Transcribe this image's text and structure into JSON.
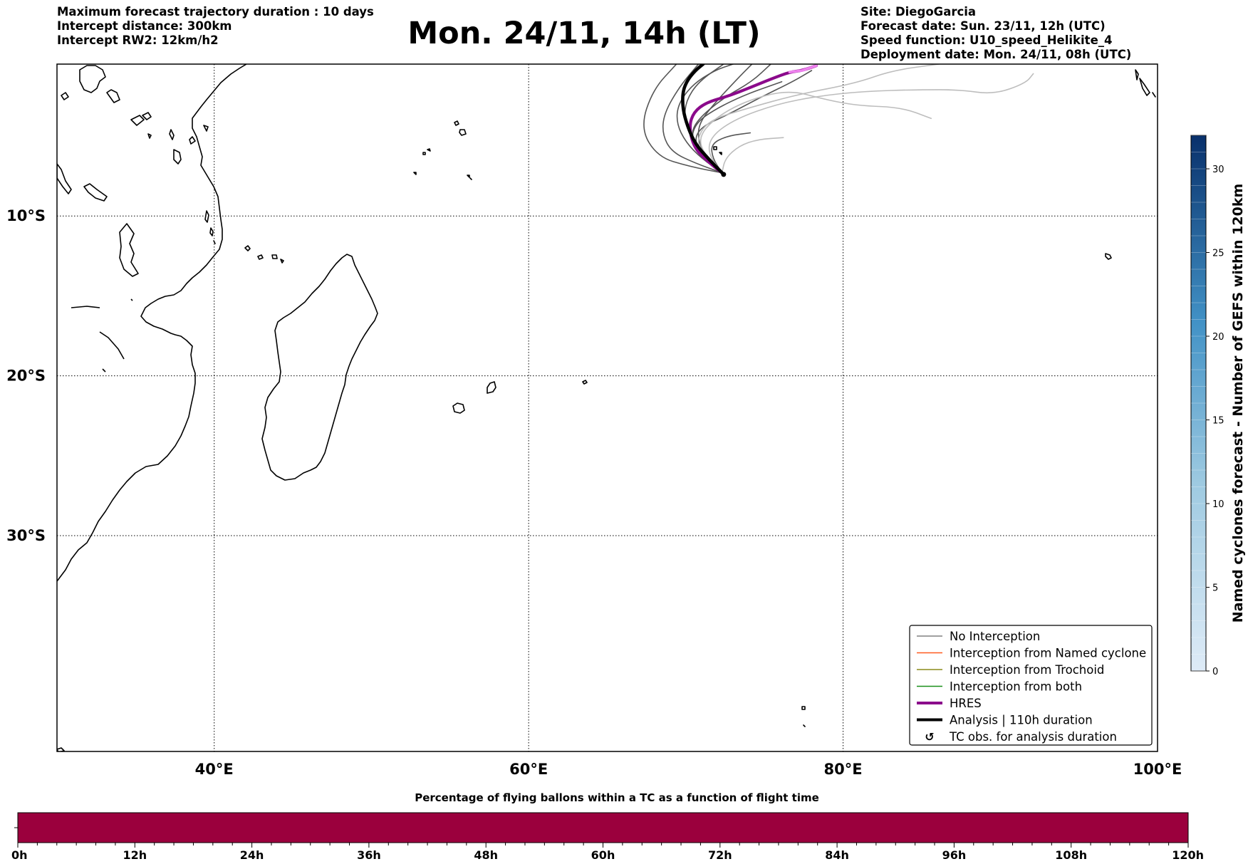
{
  "header_left": [
    "Maximum forecast trajectory duration : 10 days",
    "Intercept distance: 300km",
    "Intercept RW2: 12km/h2"
  ],
  "header_right": [
    "Site: DiegoGarcia",
    "Forecast date: Sun. 23/11, 12h (UTC)",
    "Speed function: U10_speed_Helikite_4",
    "Deployment date: Mon. 24/11, 08h (UTC)"
  ],
  "title": "Mon. 24/11, 14h (LT)",
  "map": {
    "lon_range": [
      30,
      100
    ],
    "lat_range": [
      -43.5,
      -0.5
    ],
    "lon_ticks": [
      {
        "value": 40,
        "label": "40°E"
      },
      {
        "value": 60,
        "label": "60°E"
      },
      {
        "value": 80,
        "label": "80°E"
      },
      {
        "value": 100,
        "label": "100°E"
      }
    ],
    "lat_ticks": [
      {
        "value": -10,
        "label": "10°S"
      },
      {
        "value": -20,
        "label": "20°S"
      },
      {
        "value": -30,
        "label": "30°S"
      }
    ],
    "grid": "dotted",
    "coastline_color": "#000000",
    "launch_point": {
      "lon": 72.4,
      "lat": -7.4
    }
  },
  "legend": {
    "placement": "lower-right",
    "items": [
      {
        "label": "No Interception",
        "color": "#808080",
        "style": "thin-line"
      },
      {
        "label": "Interception from Named cyclone",
        "color": "#ff5a1f",
        "style": "thin-line"
      },
      {
        "label": "Interception from Trochoid",
        "color": "#8b8b1a",
        "style": "thin-line"
      },
      {
        "label": "Interception from both",
        "color": "#1a8f1a",
        "style": "thin-line"
      },
      {
        "label": "HRES",
        "color": "#8b0a8b",
        "style": "thick-line"
      },
      {
        "label": "Analysis | 110h duration",
        "color": "#000000",
        "style": "thick-line"
      },
      {
        "label": "TC obs. for analysis duration",
        "color": "#000000",
        "style": "cyclone-symbol"
      }
    ]
  },
  "colorbar_right": {
    "label": "Named cyclones forecast - Number of GEFS within 120km",
    "range": [
      0,
      32
    ],
    "ticks": [
      0,
      5,
      10,
      15,
      20,
      25,
      30
    ],
    "colormap": "Blues",
    "colors": [
      "#deebf7",
      "#08306b"
    ]
  },
  "colorbar_bottom": {
    "title": "Percentage of flying ballons within a TC as a function of flight time",
    "ticks": [
      "0h",
      "12h",
      "24h",
      "36h",
      "48h",
      "60h",
      "72h",
      "84h",
      "96h",
      "108h",
      "120h"
    ],
    "fill_color": "#9b003d"
  },
  "chart_data": {
    "type": "line",
    "title": "Mon. 24/11, 14h (LT)",
    "xlabel": "",
    "ylabel": "",
    "xlim": [
      30,
      100
    ],
    "ylim": [
      -43.5,
      -0.5
    ],
    "series": [
      {
        "name": "Analysis | 110h duration",
        "color": "#000000",
        "x": [
          72.4,
          71.5,
          70.6,
          70.1,
          69.8,
          69.8,
          70.1,
          70.6,
          71.1
        ],
        "y": [
          -7.4,
          -6.5,
          -5.5,
          -4.4,
          -3.3,
          -2.2,
          -1.5,
          -0.9,
          -0.5
        ]
      },
      {
        "name": "HRES",
        "color": "#8b0a8b",
        "x": [
          72.3,
          71.4,
          70.5,
          70.2,
          70.5,
          71.3,
          72.7,
          74.0,
          75.5,
          76.6,
          77.4,
          78.3
        ],
        "y": [
          -7.3,
          -6.6,
          -5.7,
          -4.4,
          -3.5,
          -2.9,
          -2.5,
          -2.0,
          -1.4,
          -1.0,
          -0.9,
          -0.6
        ]
      },
      {
        "name": "No Interception",
        "color": "#555555",
        "x": [
          72.3,
          71.0,
          70.0,
          69.4,
          69.5,
          70.4,
          71.8,
          73.0
        ],
        "y": [
          -7.3,
          -6.4,
          -5.4,
          -4.2,
          -3.0,
          -1.8,
          -0.9,
          -0.5
        ]
      },
      {
        "name": "No Interception",
        "color": "#555555",
        "x": [
          72.3,
          70.6,
          69.1,
          68.5,
          68.6,
          69.6,
          70.8
        ],
        "y": [
          -7.3,
          -6.7,
          -6.0,
          -4.9,
          -3.6,
          -1.9,
          -0.5
        ]
      },
      {
        "name": "No Interception",
        "color": "#555555",
        "x": [
          72.3,
          71.3,
          70.4,
          69.9,
          70.0,
          70.8,
          72.4
        ],
        "y": [
          -7.3,
          -6.3,
          -5.1,
          -4.0,
          -2.8,
          -1.6,
          -0.5
        ]
      },
      {
        "name": "No Interception",
        "color": "#555555",
        "x": [
          72.3,
          71.4,
          70.8,
          70.8,
          71.6,
          73.1,
          74.2
        ],
        "y": [
          -7.3,
          -6.4,
          -5.4,
          -4.3,
          -3.2,
          -1.6,
          -0.5
        ]
      },
      {
        "name": "No Interception",
        "color": "#555555",
        "x": [
          72.3,
          70.2,
          68.2,
          67.1,
          67.9,
          69.4
        ],
        "y": [
          -7.3,
          -6.9,
          -6.3,
          -4.5,
          -2.1,
          -0.5
        ]
      },
      {
        "name": "No Interception",
        "color": "#555555",
        "x": [
          72.3,
          71.1,
          70.3,
          70.6,
          71.9,
          73.8,
          76.1
        ],
        "y": [
          -7.3,
          -6.4,
          -5.4,
          -4.2,
          -3.3,
          -2.4,
          -1.6
        ]
      },
      {
        "name": "No Interception",
        "color": "#555555",
        "x": [
          72.3,
          71.2,
          70.5,
          71.0,
          72.6,
          74.7,
          76.8,
          78.0
        ],
        "y": [
          -7.3,
          -6.4,
          -5.3,
          -4.4,
          -3.7,
          -2.6,
          -1.6,
          -0.9
        ]
      },
      {
        "name": "No Interception",
        "color": "#555555",
        "x": [
          72.3,
          71.1,
          70.3,
          70.7,
          72.4,
          74.2,
          75.4
        ],
        "y": [
          -7.3,
          -6.2,
          -5.0,
          -4.0,
          -2.6,
          -1.6,
          -0.5
        ]
      },
      {
        "name": "No Interception",
        "color": "#555555",
        "x": [
          72.3,
          71.7,
          71.6,
          72.6,
          74.1
        ],
        "y": [
          -7.3,
          -6.4,
          -5.5,
          -5.0,
          -4.8
        ]
      },
      {
        "name": "No Interception",
        "color": "#bdbdbd",
        "x": [
          72.3,
          71.0,
          70.7,
          71.5,
          73.8,
          77.1,
          80.8,
          83.1,
          86.1
        ],
        "y": [
          -7.3,
          -6.2,
          -5.1,
          -4.0,
          -3.3,
          -2.4,
          -1.7,
          -0.9,
          -0.5
        ]
      },
      {
        "name": "No Interception",
        "color": "#bdbdbd",
        "x": [
          72.3,
          71.2,
          70.8,
          71.8,
          73.8,
          76.5,
          78.8,
          80.9,
          83.7,
          85.6
        ],
        "y": [
          -7.3,
          -6.2,
          -5.1,
          -3.9,
          -2.8,
          -2.1,
          -2.7,
          -3.1,
          -3.2,
          -3.9
        ]
      },
      {
        "name": "No Interception",
        "color": "#bdbdbd",
        "x": [
          72.3,
          71.4,
          71.6,
          73.2,
          75.8,
          78.4,
          81.3,
          84.8,
          87.4,
          89.6,
          91.6,
          92.1
        ],
        "y": [
          -7.3,
          -6.1,
          -5.0,
          -3.9,
          -3.0,
          -2.5,
          -2.2,
          -2.1,
          -2.1,
          -2.4,
          -1.7,
          -1.1
        ]
      },
      {
        "name": "No Interception",
        "color": "#bdbdbd",
        "x": [
          72.3,
          72.5,
          73.4,
          74.6,
          76.2
        ],
        "y": [
          -7.3,
          -6.4,
          -5.6,
          -5.2,
          -5.1
        ]
      }
    ]
  }
}
